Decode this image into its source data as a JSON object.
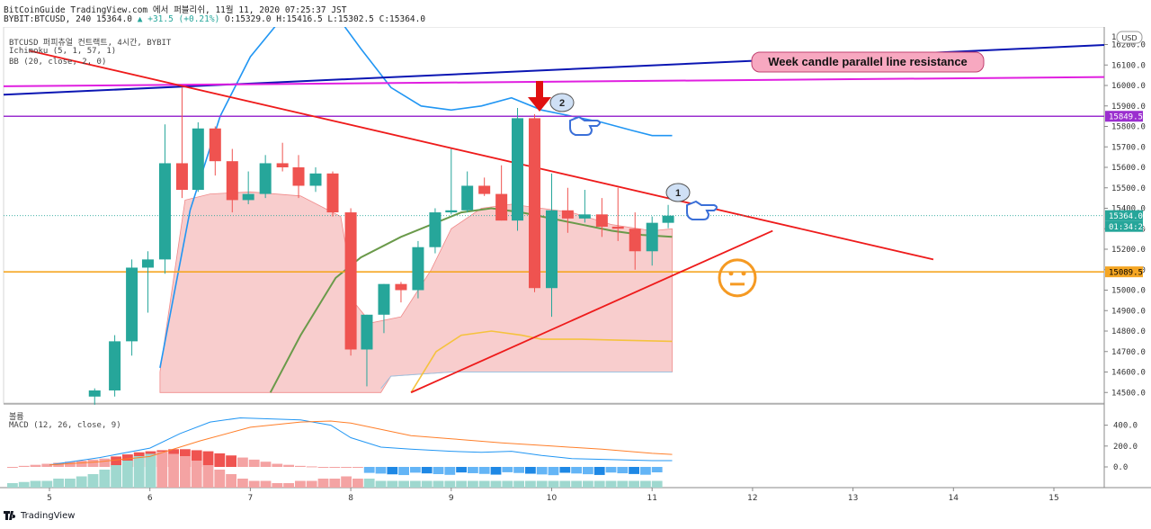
{
  "header": {
    "line1": "BitCoinGuide TradingView.com 에서 퍼블리쉬, 11월 11, 2020 07:25:37 JST",
    "symbol": "BYBIT:BTCUSD, 240",
    "price": "15364.0",
    "change": "+31.5 (+0.21%)",
    "ohlc": "O:15329.0 H:15416.5 L:15302.5 C:15364.0"
  },
  "legend": {
    "title": "BTCUSD 퍼피츄얼 컨트랙트, 4시간, BYBIT",
    "ichimoku": "Ichimoku (5, 1, 57, 1)",
    "bb": "BB (20, close, 2, 0)",
    "macd_pane": "볼륨",
    "macd": "MACD (12, 26, close, 9)"
  },
  "footer": {
    "brand": "TradingView"
  },
  "chart_data": {
    "type": "candlestick",
    "currency": "USD",
    "y_ticks": [
      16200.0,
      16100.0,
      16000.0,
      15900.0,
      15800.0,
      15700.0,
      15600.0,
      15500.0,
      15400.0,
      15300.0,
      15200.0,
      15100.0,
      15000.0,
      14900.0,
      14800.0,
      14700.0,
      14600.0,
      14500.0
    ],
    "y_top_label": "1",
    "macd_ticks": [
      "400.0",
      "200.0",
      "0.0"
    ],
    "x_ticks": [
      {
        "label": "5",
        "day": 5
      },
      {
        "label": "6",
        "day": 6
      },
      {
        "label": "7",
        "day": 7
      },
      {
        "label": "8",
        "day": 8
      },
      {
        "label": "9",
        "day": 9
      },
      {
        "label": "10",
        "day": 10
      },
      {
        "label": "11",
        "day": 11
      },
      {
        "label": "12",
        "day": 12
      },
      {
        "label": "13",
        "day": 13
      },
      {
        "label": "14",
        "day": 14
      },
      {
        "label": "15",
        "day": 15
      }
    ],
    "candles": [
      {
        "t": 5.45,
        "o": 14480,
        "h": 14520,
        "l": 14440,
        "c": 14510
      },
      {
        "t": 5.65,
        "o": 14510,
        "h": 14780,
        "l": 14480,
        "c": 14750
      },
      {
        "t": 5.82,
        "o": 14750,
        "h": 15150,
        "l": 14680,
        "c": 15110
      },
      {
        "t": 5.98,
        "o": 15110,
        "h": 15190,
        "l": 14890,
        "c": 15150
      },
      {
        "t": 6.15,
        "o": 15150,
        "h": 15810,
        "l": 15080,
        "c": 15620
      },
      {
        "t": 6.32,
        "o": 15620,
        "h": 15990,
        "l": 15450,
        "c": 15490
      },
      {
        "t": 6.48,
        "o": 15490,
        "h": 15820,
        "l": 15480,
        "c": 15790
      },
      {
        "t": 6.65,
        "o": 15790,
        "h": 15800,
        "l": 15560,
        "c": 15630
      },
      {
        "t": 6.82,
        "o": 15630,
        "h": 15690,
        "l": 15380,
        "c": 15440
      },
      {
        "t": 6.98,
        "o": 15440,
        "h": 15580,
        "l": 15420,
        "c": 15470
      },
      {
        "t": 7.15,
        "o": 15470,
        "h": 15660,
        "l": 15450,
        "c": 15620
      },
      {
        "t": 7.32,
        "o": 15620,
        "h": 15720,
        "l": 15580,
        "c": 15600
      },
      {
        "t": 7.48,
        "o": 15600,
        "h": 15660,
        "l": 15450,
        "c": 15510
      },
      {
        "t": 7.65,
        "o": 15510,
        "h": 15600,
        "l": 15480,
        "c": 15570
      },
      {
        "t": 7.82,
        "o": 15570,
        "h": 15580,
        "l": 15360,
        "c": 15380
      },
      {
        "t": 8.0,
        "o": 15380,
        "h": 15400,
        "l": 14680,
        "c": 14710
      },
      {
        "t": 8.16,
        "o": 14710,
        "h": 14880,
        "l": 14530,
        "c": 14880
      },
      {
        "t": 8.33,
        "o": 14880,
        "h": 15030,
        "l": 14790,
        "c": 15030
      },
      {
        "t": 8.5,
        "o": 15030,
        "h": 15040,
        "l": 14940,
        "c": 15000
      },
      {
        "t": 8.67,
        "o": 15000,
        "h": 15240,
        "l": 14960,
        "c": 15210
      },
      {
        "t": 8.84,
        "o": 15210,
        "h": 15400,
        "l": 15180,
        "c": 15380
      },
      {
        "t": 9.0,
        "o": 15380,
        "h": 15690,
        "l": 15370,
        "c": 15390
      },
      {
        "t": 9.16,
        "o": 15390,
        "h": 15580,
        "l": 15380,
        "c": 15510
      },
      {
        "t": 9.33,
        "o": 15510,
        "h": 15550,
        "l": 15460,
        "c": 15470
      },
      {
        "t": 9.5,
        "o": 15470,
        "h": 15610,
        "l": 15340,
        "c": 15340
      },
      {
        "t": 9.66,
        "o": 15340,
        "h": 15890,
        "l": 15290,
        "c": 15840
      },
      {
        "t": 9.83,
        "o": 15840,
        "h": 15860,
        "l": 14990,
        "c": 15010
      },
      {
        "t": 10.0,
        "o": 15010,
        "h": 15570,
        "l": 14870,
        "c": 15390
      },
      {
        "t": 10.16,
        "o": 15390,
        "h": 15500,
        "l": 15280,
        "c": 15350
      },
      {
        "t": 10.33,
        "o": 15350,
        "h": 15490,
        "l": 15330,
        "c": 15370
      },
      {
        "t": 10.5,
        "o": 15370,
        "h": 15450,
        "l": 15260,
        "c": 15310
      },
      {
        "t": 10.66,
        "o": 15310,
        "h": 15500,
        "l": 15240,
        "c": 15300
      },
      {
        "t": 10.83,
        "o": 15300,
        "h": 15380,
        "l": 15100,
        "c": 15190
      },
      {
        "t": 11.0,
        "o": 15190,
        "h": 15360,
        "l": 15120,
        "c": 15329
      },
      {
        "t": 11.16,
        "o": 15329,
        "h": 15416.5,
        "l": 15302.5,
        "c": 15364
      }
    ],
    "current_price_label": "15364.0",
    "countdown_label": "01:34:24",
    "resistance_label": "15849.5",
    "support_label": "15089.5",
    "annotations": {
      "week_resistance": "Week candle parallel line resistance",
      "marker_1": "1",
      "marker_2": "2"
    },
    "colors": {
      "up": "#26a69a",
      "down": "#ef5350",
      "blue_line": "#0b16b3",
      "magenta_line": "#e01fe0",
      "purple_line": "#9b2fcf",
      "red_line": "#ee1b1b",
      "orange_line": "#f5a623",
      "conversion": "#2196f3",
      "baseline": "#6a9a4a",
      "span_b": "#f5c23e",
      "cloud": "#f7c4c4",
      "macd": "#2196f3",
      "signal": "#ff7f2a",
      "label_bg": "#f7a8c0"
    }
  }
}
